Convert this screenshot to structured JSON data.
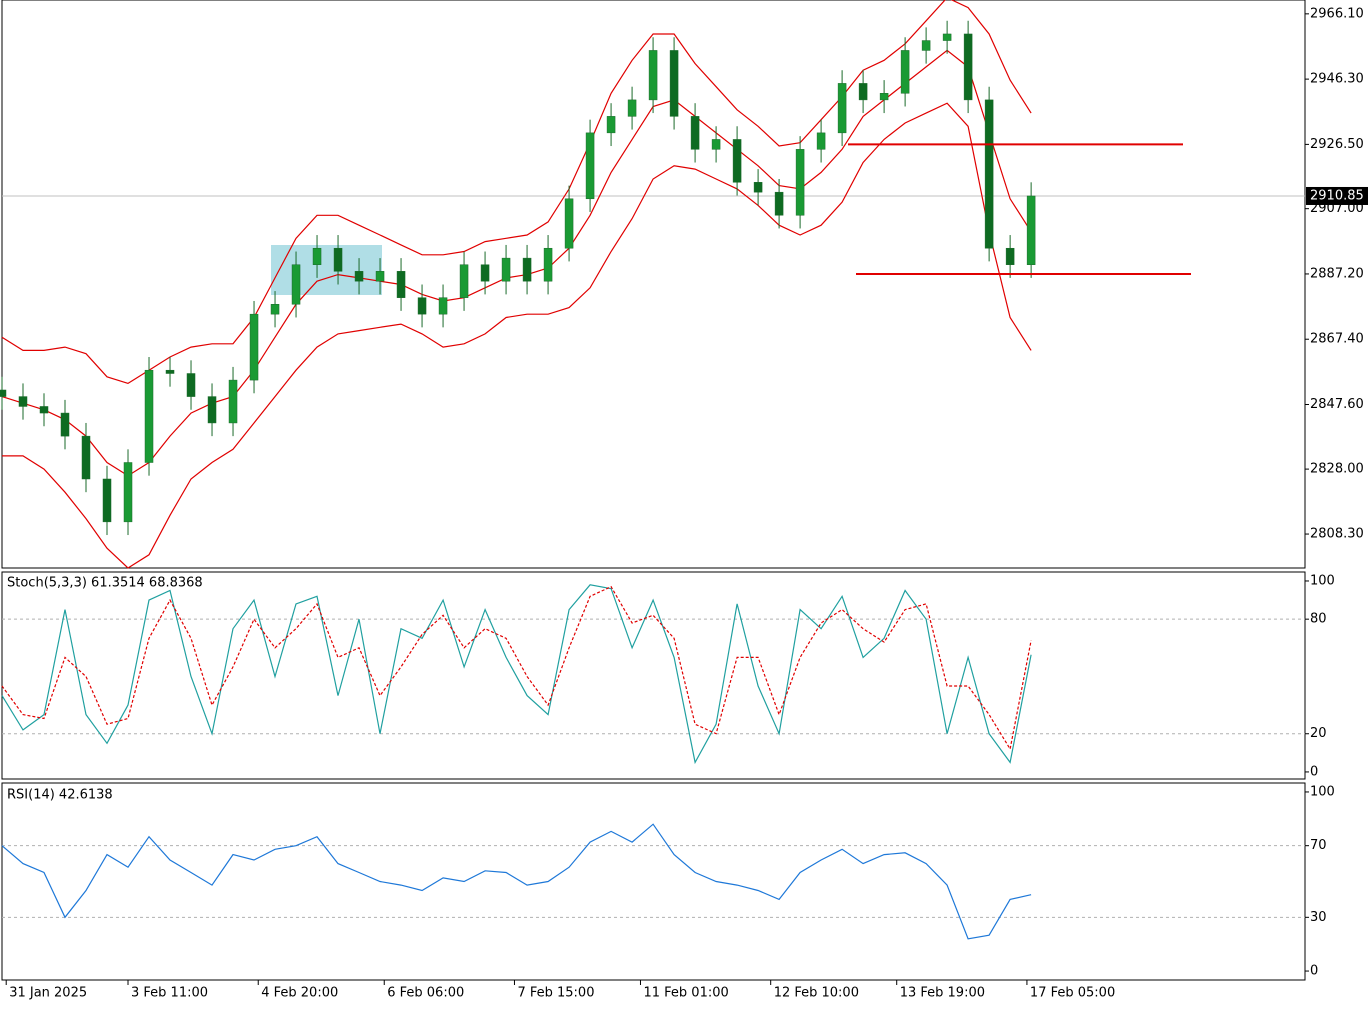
{
  "chart_data": [
    {
      "type": "candlestick",
      "up_color": "#1a9a34",
      "down_color": "#0e6b22",
      "wick_color": "#1a6a2a",
      "xlim": [
        0,
        310.2
      ],
      "ylim": [
        2798,
        2970.3
      ],
      "yticks": [
        {
          "value": 2966.1,
          "label": "2966.10"
        },
        {
          "value": 2946.3,
          "label": "2946.30"
        },
        {
          "value": 2926.5,
          "label": "2926.50"
        },
        {
          "value": 2907.0,
          "label": "2907.00"
        },
        {
          "value": 2887.2,
          "label": "2887.20"
        },
        {
          "value": 2867.4,
          "label": "2867.40"
        },
        {
          "value": 2847.6,
          "label": "2847.60"
        },
        {
          "value": 2828.0,
          "label": "2828.00"
        },
        {
          "value": 2808.3,
          "label": "2808.30"
        }
      ],
      "last_price": 2910.85,
      "levels": [
        2926.5,
        2887.2
      ],
      "level_color": "#e00000",
      "x": [
        0,
        5,
        10,
        15,
        20,
        25,
        30,
        35,
        40,
        45,
        50,
        55,
        60,
        65,
        70,
        75,
        80,
        85,
        90,
        95,
        100,
        105,
        110,
        115,
        120,
        125,
        130,
        135,
        140,
        145,
        150,
        155,
        160,
        165,
        170,
        175,
        180,
        185,
        190,
        195,
        200,
        205,
        210,
        215,
        220,
        225,
        230,
        235,
        240,
        245
      ],
      "open": [
        2852,
        2850,
        2847,
        2845,
        2838,
        2825,
        2812,
        2830,
        2858,
        2857,
        2850,
        2842,
        2855,
        2875,
        2878,
        2890,
        2895,
        2888,
        2885,
        2888,
        2880,
        2875,
        2880,
        2890,
        2885,
        2892,
        2885,
        2895,
        2910,
        2930,
        2935,
        2940,
        2955,
        2935,
        2925,
        2928,
        2915,
        2912,
        2905,
        2925,
        2930,
        2945,
        2940,
        2942,
        2955,
        2958,
        2960,
        2940,
        2895,
        2890
      ],
      "high": [
        2856,
        2854,
        2851,
        2849,
        2842,
        2829,
        2834,
        2862,
        2862,
        2861,
        2854,
        2859,
        2879,
        2882,
        2894,
        2899,
        2899,
        2892,
        2892,
        2892,
        2884,
        2884,
        2894,
        2894,
        2896,
        2896,
        2899,
        2914,
        2934,
        2939,
        2944,
        2959,
        2959,
        2939,
        2932,
        2932,
        2919,
        2916,
        2929,
        2934,
        2949,
        2949,
        2946,
        2959,
        2962,
        2964,
        2964,
        2944,
        2899,
        2915
      ],
      "low": [
        2846,
        2843,
        2841,
        2834,
        2821,
        2808,
        2808,
        2826,
        2853,
        2846,
        2838,
        2838,
        2851,
        2871,
        2874,
        2886,
        2884,
        2881,
        2881,
        2876,
        2871,
        2871,
        2876,
        2881,
        2881,
        2881,
        2881,
        2891,
        2906,
        2926,
        2931,
        2936,
        2931,
        2921,
        2921,
        2911,
        2908,
        2901,
        2901,
        2921,
        2926,
        2936,
        2936,
        2938,
        2951,
        2954,
        2936,
        2891,
        2886,
        2886
      ],
      "close": [
        2850,
        2847,
        2845,
        2838,
        2825,
        2812,
        2830,
        2858,
        2857,
        2850,
        2842,
        2855,
        2875,
        2878,
        2890,
        2895,
        2888,
        2885,
        2888,
        2880,
        2875,
        2880,
        2890,
        2885,
        2892,
        2885,
        2895,
        2910,
        2930,
        2935,
        2940,
        2955,
        2935,
        2925,
        2928,
        2915,
        2912,
        2905,
        2925,
        2930,
        2945,
        2940,
        2942,
        2955,
        2958,
        2960,
        2940,
        2895,
        2890,
        2910.85
      ],
      "series": [
        {
          "color": "#e00000",
          "values": [
            2868,
            2864,
            2864,
            2865,
            2863,
            2856,
            2854,
            2858,
            2862,
            2865,
            2866,
            2866,
            2874,
            2886,
            2898,
            2905,
            2905,
            2902,
            2899,
            2896,
            2893,
            2893,
            2894,
            2897,
            2898,
            2899,
            2903,
            2913,
            2927,
            2942,
            2952,
            2960,
            2960,
            2951,
            2944,
            2937,
            2932,
            2926,
            2927,
            2934,
            2941,
            2949,
            2952,
            2957,
            2964,
            2971,
            2968,
            2960,
            2946,
            2936
          ]
        },
        {
          "color": "#e00000",
          "values": [
            2850,
            2848,
            2846,
            2843,
            2838,
            2830,
            2826,
            2830,
            2838,
            2845,
            2848,
            2850,
            2858,
            2868,
            2878,
            2885,
            2887,
            2886,
            2885,
            2884,
            2881,
            2879,
            2880,
            2883,
            2886,
            2887,
            2889,
            2895,
            2905,
            2918,
            2928,
            2938,
            2940,
            2935,
            2930,
            2925,
            2920,
            2914,
            2913,
            2918,
            2925,
            2935,
            2940,
            2945,
            2950,
            2955,
            2950,
            2930,
            2910,
            2900
          ]
        },
        {
          "color": "#e00000",
          "values": [
            2832,
            2832,
            2828,
            2821,
            2813,
            2804,
            2798,
            2802,
            2814,
            2825,
            2830,
            2834,
            2842,
            2850,
            2858,
            2865,
            2869,
            2870,
            2871,
            2872,
            2869,
            2865,
            2866,
            2869,
            2874,
            2875,
            2875,
            2877,
            2883,
            2894,
            2904,
            2916,
            2920,
            2919,
            2916,
            2913,
            2908,
            2902,
            2899,
            2902,
            2909,
            2921,
            2928,
            2933,
            2936,
            2939,
            2932,
            2900,
            2874,
            2864
          ]
        }
      ]
    },
    {
      "type": "line",
      "title": "Stoch(5,3,3) 61.3514 68.8368",
      "xlim": [
        0,
        310.2
      ],
      "ylim": [
        -3.7,
        104.7
      ],
      "yticks": [
        0,
        20,
        80,
        100
      ],
      "levels": [
        20,
        80
      ],
      "x": [
        0,
        5,
        10,
        15,
        20,
        25,
        30,
        35,
        40,
        45,
        50,
        55,
        60,
        65,
        70,
        75,
        80,
        85,
        90,
        95,
        100,
        105,
        110,
        115,
        120,
        125,
        130,
        135,
        140,
        145,
        150,
        155,
        160,
        165,
        170,
        175,
        180,
        185,
        190,
        195,
        200,
        205,
        210,
        215,
        220,
        225,
        230,
        235,
        240,
        245
      ],
      "series": [
        {
          "color": "#20a0a0",
          "dashed": false,
          "values": [
            40,
            22,
            30,
            85,
            30,
            15,
            35,
            90,
            95,
            50,
            20,
            75,
            90,
            50,
            88,
            92,
            40,
            80,
            20,
            75,
            70,
            90,
            55,
            85,
            60,
            40,
            30,
            85,
            98,
            96,
            65,
            90,
            60,
            5,
            25,
            88,
            45,
            20,
            85,
            75,
            92,
            60,
            70,
            95,
            80,
            20,
            60,
            20,
            5,
            61.35
          ]
        },
        {
          "color": "#e00000",
          "dashed": true,
          "values": [
            45,
            30,
            28,
            60,
            50,
            25,
            28,
            70,
            90,
            70,
            35,
            55,
            80,
            65,
            75,
            88,
            60,
            65,
            40,
            55,
            72,
            82,
            65,
            75,
            70,
            50,
            35,
            65,
            92,
            97,
            78,
            82,
            70,
            25,
            20,
            60,
            60,
            30,
            60,
            78,
            85,
            75,
            68,
            85,
            88,
            45,
            45,
            30,
            12,
            68.84
          ]
        }
      ]
    },
    {
      "type": "line",
      "title": "RSI(14) 42.6138",
      "xlim": [
        0,
        310.2
      ],
      "ylim": [
        -5,
        105
      ],
      "yticks": [
        0,
        30,
        70,
        100
      ],
      "levels": [
        30,
        70
      ],
      "xticks": [
        {
          "value": 1,
          "label": "31 Jan 2025"
        },
        {
          "value": 30,
          "label": "3 Feb 11:00"
        },
        {
          "value": 61,
          "label": "4 Feb 20:00"
        },
        {
          "value": 91,
          "label": "6 Feb 06:00"
        },
        {
          "value": 122,
          "label": "7 Feb 15:00"
        },
        {
          "value": 152,
          "label": "11 Feb 01:00"
        },
        {
          "value": 183,
          "label": "12 Feb 10:00"
        },
        {
          "value": 213,
          "label": "13 Feb 19:00"
        },
        {
          "value": 244,
          "label": "17 Feb 05:00"
        }
      ],
      "x": [
        0,
        5,
        10,
        15,
        20,
        25,
        30,
        35,
        40,
        45,
        50,
        55,
        60,
        65,
        70,
        75,
        80,
        85,
        90,
        95,
        100,
        105,
        110,
        115,
        120,
        125,
        130,
        135,
        140,
        145,
        150,
        155,
        160,
        165,
        170,
        175,
        180,
        185,
        190,
        195,
        200,
        205,
        210,
        215,
        220,
        225,
        230,
        235,
        240,
        245
      ],
      "series": [
        {
          "color": "#1e78d8",
          "dashed": false,
          "values": [
            70,
            60,
            55,
            30,
            45,
            65,
            58,
            75,
            62,
            55,
            48,
            65,
            62,
            68,
            70,
            75,
            60,
            55,
            50,
            48,
            45,
            52,
            50,
            56,
            55,
            48,
            50,
            58,
            72,
            78,
            72,
            82,
            65,
            55,
            50,
            48,
            45,
            40,
            55,
            62,
            68,
            60,
            65,
            66,
            60,
            48,
            18,
            20,
            40,
            42.61
          ]
        }
      ]
    }
  ]
}
